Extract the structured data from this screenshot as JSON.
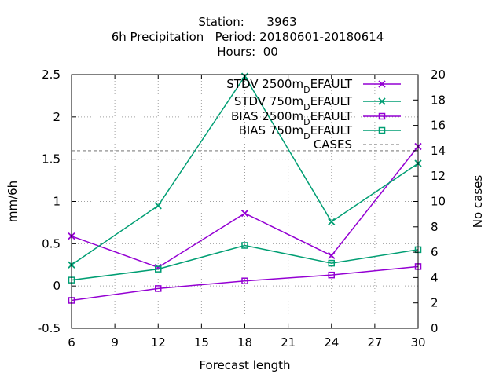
{
  "chart_data": {
    "type": "line",
    "title_lines": [
      "Station:      3963",
      "6h Precipitation   Period: 20180601-20180614",
      "Hours:  00"
    ],
    "xlabel": "Forecast length",
    "ylabel": "mm/6h",
    "y2label": "No cases",
    "xlim": [
      6,
      30
    ],
    "ylim": [
      -0.5,
      2.5
    ],
    "y2lim": [
      0,
      20
    ],
    "x_ticks": [
      6,
      9,
      12,
      15,
      18,
      21,
      24,
      27,
      30
    ],
    "y_ticks": [
      -0.5,
      0,
      0.5,
      1,
      1.5,
      2,
      2.5
    ],
    "y_tick_labels": [
      "-0.5",
      "0",
      "0.5",
      "1",
      "1.5",
      "2",
      "2.5"
    ],
    "y2_ticks": [
      0,
      2,
      4,
      6,
      8,
      10,
      12,
      14,
      16,
      18,
      20
    ],
    "grid": true,
    "legend_position": "top-right",
    "x": [
      6,
      12,
      18,
      24,
      30
    ],
    "series": [
      {
        "name": "STDV 2500m_DEFAULT",
        "label_main": "STDV 2500m",
        "label_sub": "D",
        "label_tail": "EFAULT",
        "color": "#9400d3",
        "marker": "x",
        "values": [
          0.59,
          0.22,
          0.86,
          0.36,
          1.65
        ]
      },
      {
        "name": "STDV 750m_DEFAULT",
        "label_main": "STDV 750m",
        "label_sub": "D",
        "label_tail": "EFAULT",
        "color": "#009e73",
        "marker": "x",
        "values": [
          0.25,
          0.95,
          2.48,
          0.76,
          1.45
        ]
      },
      {
        "name": "BIAS 2500m_DEFAULT",
        "label_main": "BIAS 2500m",
        "label_sub": "D",
        "label_tail": "EFAULT",
        "color": "#9400d3",
        "marker": "square",
        "values": [
          -0.17,
          -0.03,
          0.06,
          0.13,
          0.23
        ]
      },
      {
        "name": "BIAS 750m_DEFAULT",
        "label_main": "BIAS 750m",
        "label_sub": "D",
        "label_tail": "EFAULT",
        "color": "#009e73",
        "marker": "square",
        "values": [
          0.07,
          0.2,
          0.48,
          0.27,
          0.43
        ]
      }
    ],
    "cases": {
      "name": "CASES",
      "color": "#a0a0a0",
      "value": 14
    }
  }
}
